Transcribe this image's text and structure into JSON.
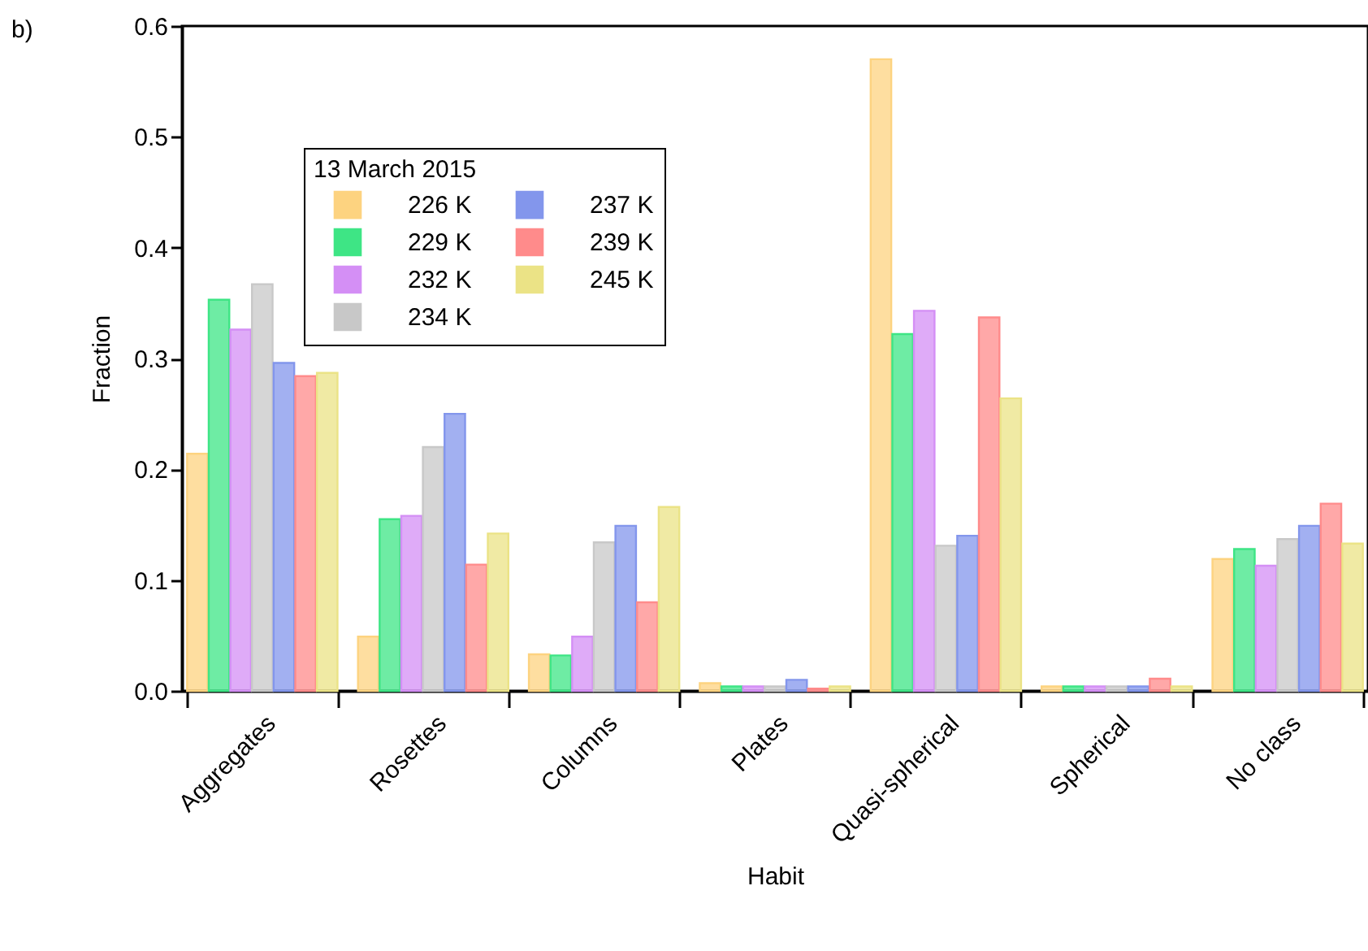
{
  "chart_data": {
    "type": "bar",
    "xlabel": "Habit",
    "ylabel": "Fraction",
    "legend_title": "13 March 2015",
    "annotations": [
      "b)"
    ],
    "categories": [
      "Aggregates",
      "Rosettes",
      "Columns",
      "Plates",
      "Quasi-spherical",
      "Spherical",
      "No class"
    ],
    "ylim": [
      0,
      0.6
    ],
    "yticks": [
      {
        "value": 0,
        "label": "0.0"
      },
      {
        "value": 0.1,
        "label": "0.1"
      },
      {
        "value": 0.2,
        "label": "0.2"
      },
      {
        "value": 0.3,
        "label": "0.3"
      },
      {
        "value": 0.4,
        "label": "0.4"
      },
      {
        "value": 0.5,
        "label": "0.5"
      },
      {
        "value": 0.6,
        "label": "0.6"
      }
    ],
    "grid": false,
    "legend": "top left",
    "series": [
      {
        "name": "226 K",
        "color": "#fdd380",
        "values": [
          0.214,
          0.049,
          0.033,
          0.007,
          0.57,
          0.004,
          0.119
        ]
      },
      {
        "name": "229 K",
        "color": "#3ee585",
        "values": [
          0.353,
          0.155,
          0.032,
          0.004,
          0.322,
          0.004,
          0.128
        ]
      },
      {
        "name": "232 K",
        "color": "#d48ff5",
        "values": [
          0.326,
          0.158,
          0.049,
          0.004,
          0.343,
          0.004,
          0.113
        ]
      },
      {
        "name": "234 K",
        "color": "#c8c8c8",
        "values": [
          0.367,
          0.22,
          0.134,
          0.004,
          0.131,
          0.004,
          0.137
        ]
      },
      {
        "name": "237 K",
        "color": "#8396ec",
        "values": [
          0.296,
          0.25,
          0.149,
          0.01,
          0.14,
          0.004,
          0.149
        ]
      },
      {
        "name": "239 K",
        "color": "#ff8b8b",
        "values": [
          0.284,
          0.114,
          0.08,
          0.002,
          0.337,
          0.011,
          0.169
        ]
      },
      {
        "name": "245 K",
        "color": "#ebe386",
        "values": [
          0.287,
          0.142,
          0.166,
          0.004,
          0.264,
          0.004,
          0.133
        ]
      }
    ]
  }
}
